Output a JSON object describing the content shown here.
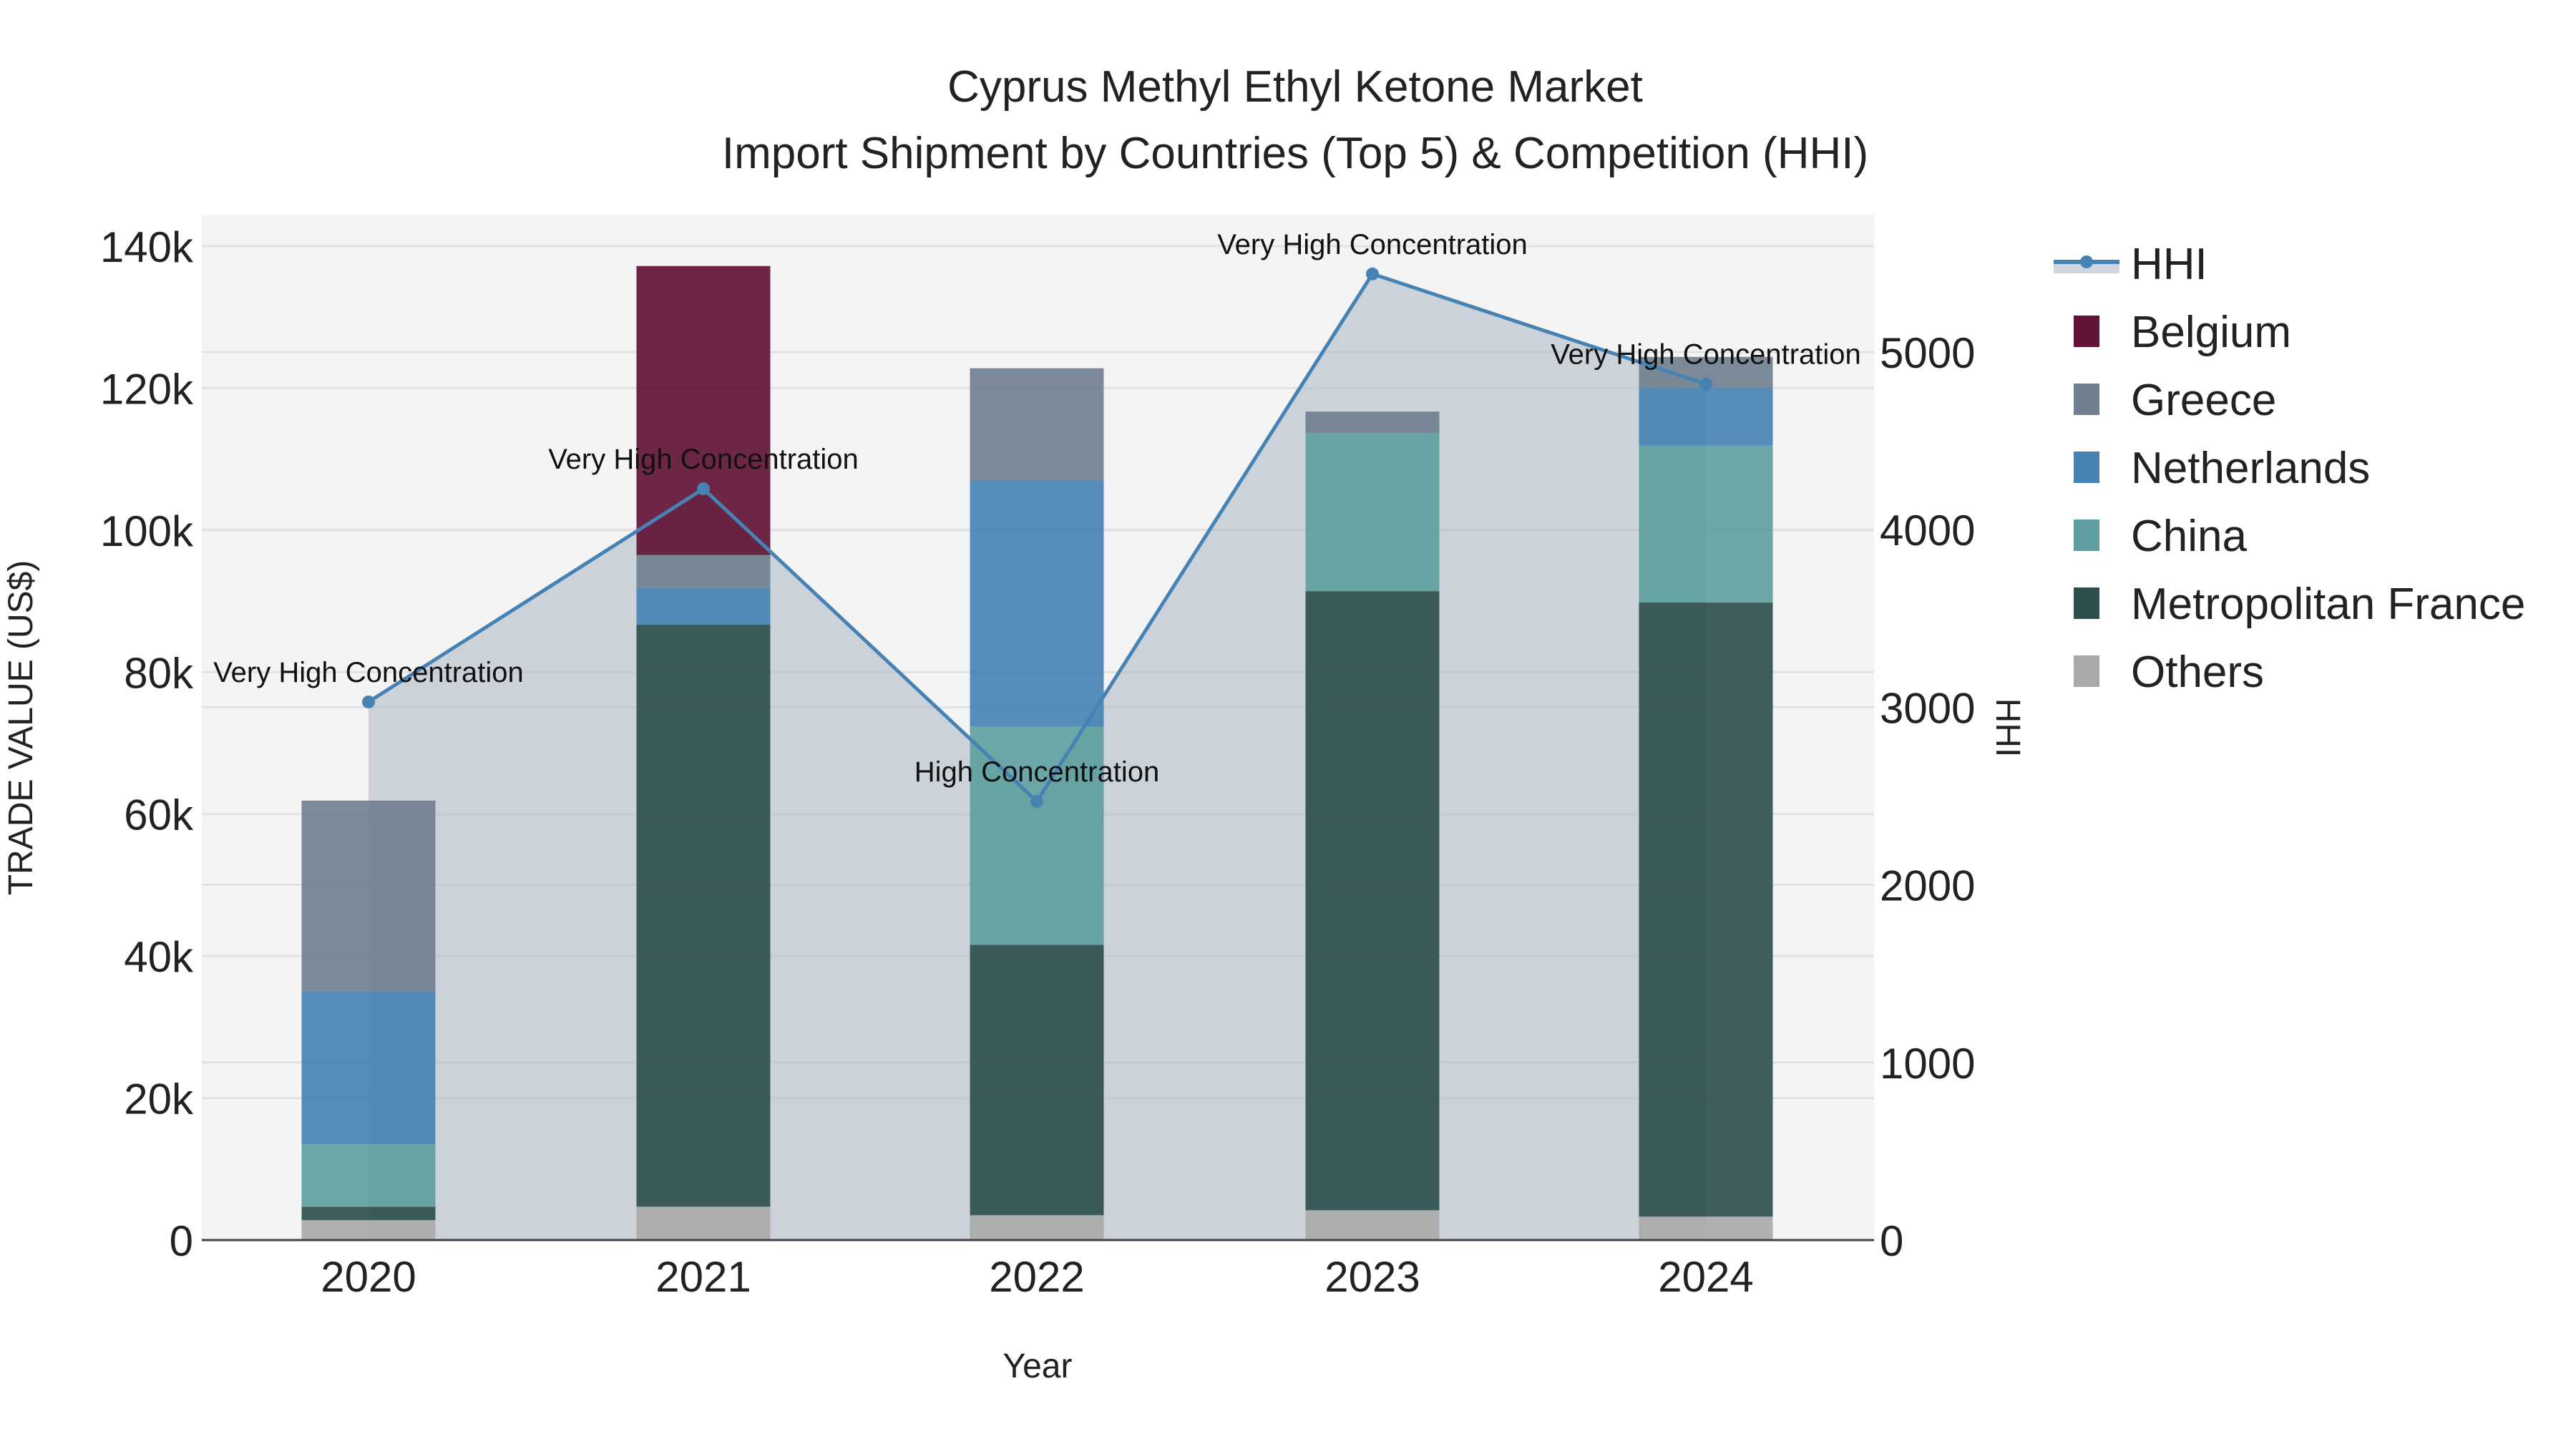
{
  "title_line1": "Cyprus Methyl Ethyl Ketone Market",
  "title_line2": "Import Shipment by Countries (Top 5) & Competition (HHI)",
  "xaxis_title": "Year",
  "yaxis_left_title": "TRADE VALUE (US$)",
  "yaxis_right_title": "HHI",
  "legend": [
    {
      "name": "HHI",
      "type": "line",
      "color": "#4682B4"
    },
    {
      "name": "Belgium",
      "type": "bar",
      "color": "#611435"
    },
    {
      "name": "Greece",
      "type": "bar",
      "color": "#708090"
    },
    {
      "name": "Netherlands",
      "type": "bar",
      "color": "#4682B4"
    },
    {
      "name": "China",
      "type": "bar",
      "color": "#5F9EA0"
    },
    {
      "name": "Metropolitan France",
      "type": "bar",
      "color": "#2F4F4F"
    },
    {
      "name": "Others",
      "type": "bar",
      "color": "#A9A9A9"
    }
  ],
  "chart_data": {
    "type": "bar",
    "stacked": true,
    "title": "Cyprus Methyl Ethyl Ketone Market — Import Shipment by Countries (Top 5) & Competition (HHI)",
    "xlabel": "Year",
    "ylabel": "TRADE VALUE (US$)",
    "y2label": "HHI",
    "categories": [
      "2020",
      "2021",
      "2022",
      "2023",
      "2024"
    ],
    "ylim": [
      0,
      145000
    ],
    "y2lim": [
      0,
      5800
    ],
    "yticks": [
      0,
      20000,
      40000,
      60000,
      80000,
      100000,
      120000,
      140000
    ],
    "ytick_labels": [
      "0",
      "20k",
      "40k",
      "60k",
      "80k",
      "100k",
      "120k",
      "140k"
    ],
    "y2ticks": [
      0,
      1000,
      2000,
      3000,
      4000,
      5000
    ],
    "y2tick_labels": [
      "0",
      "1000",
      "2000",
      "3000",
      "4000",
      "5000"
    ],
    "grid": true,
    "legend_position": "right",
    "series": [
      {
        "name": "Others",
        "color": "#A9A9A9",
        "values": [
          2800,
          4700,
          3500,
          4200,
          3300
        ]
      },
      {
        "name": "Metropolitan France",
        "color": "#2F4F4F",
        "values": [
          1900,
          82000,
          38100,
          87200,
          86500
        ]
      },
      {
        "name": "China",
        "color": "#5F9EA0",
        "values": [
          8800,
          0,
          30700,
          22300,
          22100
        ]
      },
      {
        "name": "Netherlands",
        "color": "#4682B4",
        "values": [
          21600,
          5200,
          34700,
          0,
          8100
        ]
      },
      {
        "name": "Greece",
        "color": "#708090",
        "values": [
          26800,
          4600,
          15800,
          3000,
          4400
        ]
      },
      {
        "name": "Belgium",
        "color": "#611435",
        "values": [
          0,
          40700,
          0,
          0,
          0
        ]
      }
    ],
    "totals": [
      61900,
      137200,
      122800,
      116700,
      124400
    ],
    "hhi": {
      "name": "HHI",
      "color": "#4682B4",
      "values": [
        3030,
        4230,
        2470,
        5440,
        4820
      ],
      "annotations": [
        "Very High Concentration",
        "Very High Concentration",
        "High Concentration",
        "Very High Concentration",
        "Very High Concentration"
      ]
    }
  }
}
